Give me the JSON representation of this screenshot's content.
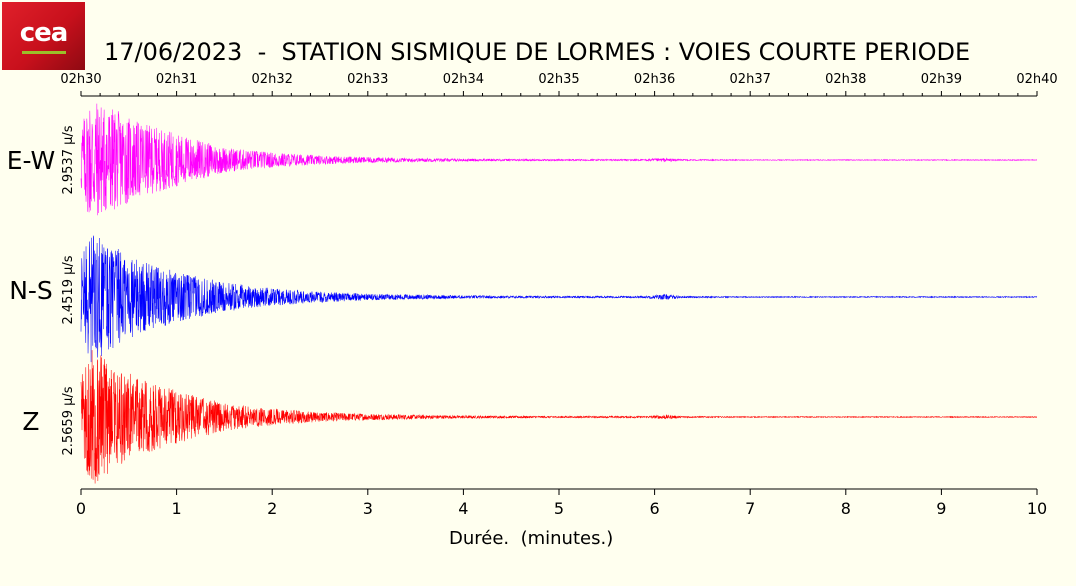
{
  "logo": {
    "text": "cea",
    "colors": [
      "#e0202a",
      "#8e0a12"
    ]
  },
  "title": "17/06/2023  -  STATION SISMIQUE DE LORMES : VOIES COURTE PERIODE",
  "chart_data": {
    "type": "line",
    "title": "17/06/2023  -  STATION SISMIQUE DE LORMES : VOIES COURTE PERIODE",
    "xlabel": "Durée.  (minutes.)",
    "xlim": [
      0,
      10
    ],
    "x_ticks": [
      "0",
      "1",
      "2",
      "3",
      "4",
      "5",
      "6",
      "7",
      "8",
      "9",
      "10"
    ],
    "top_axis_ticks": [
      "02h30",
      "02h31",
      "02h32",
      "02h33",
      "02h34",
      "02h35",
      "02h36",
      "02h37",
      "02h38",
      "02h39",
      "02h40"
    ],
    "grid": false,
    "series": [
      {
        "name": "E-W",
        "scale_label": "2.9537 μ/s",
        "color": "#ff00ff",
        "envelope": {
          "t": [
            0,
            0.1,
            0.3,
            0.6,
            1.0,
            1.5,
            2.0,
            2.5,
            3.0,
            3.5,
            4.0,
            5.0,
            5.9,
            6.1,
            6.3,
            7.0,
            10.0
          ],
          "a": [
            0.55,
            1.0,
            0.85,
            0.6,
            0.42,
            0.2,
            0.12,
            0.07,
            0.045,
            0.03,
            0.02,
            0.012,
            0.012,
            0.03,
            0.01,
            0.006,
            0.006
          ]
        }
      },
      {
        "name": "N-S",
        "scale_label": "2.4519 μ/s",
        "color": "#0000ff",
        "envelope": {
          "t": [
            0,
            0.1,
            0.3,
            0.6,
            1.0,
            1.5,
            2.0,
            2.5,
            3.0,
            3.5,
            4.0,
            5.0,
            5.9,
            6.1,
            6.3,
            7.0,
            10.0
          ],
          "a": [
            0.6,
            1.0,
            0.8,
            0.55,
            0.38,
            0.22,
            0.13,
            0.08,
            0.05,
            0.035,
            0.022,
            0.014,
            0.014,
            0.04,
            0.012,
            0.007,
            0.007
          ]
        }
      },
      {
        "name": "Z",
        "scale_label": "2.5659 μ/s",
        "color": "#ff0000",
        "envelope": {
          "t": [
            0,
            0.1,
            0.3,
            0.6,
            1.0,
            1.5,
            2.0,
            2.5,
            3.0,
            3.5,
            4.0,
            5.0,
            5.9,
            6.1,
            6.3,
            7.0,
            10.0
          ],
          "a": [
            0.6,
            1.0,
            0.8,
            0.55,
            0.38,
            0.2,
            0.12,
            0.07,
            0.045,
            0.03,
            0.02,
            0.012,
            0.012,
            0.03,
            0.01,
            0.006,
            0.006
          ]
        }
      }
    ]
  }
}
